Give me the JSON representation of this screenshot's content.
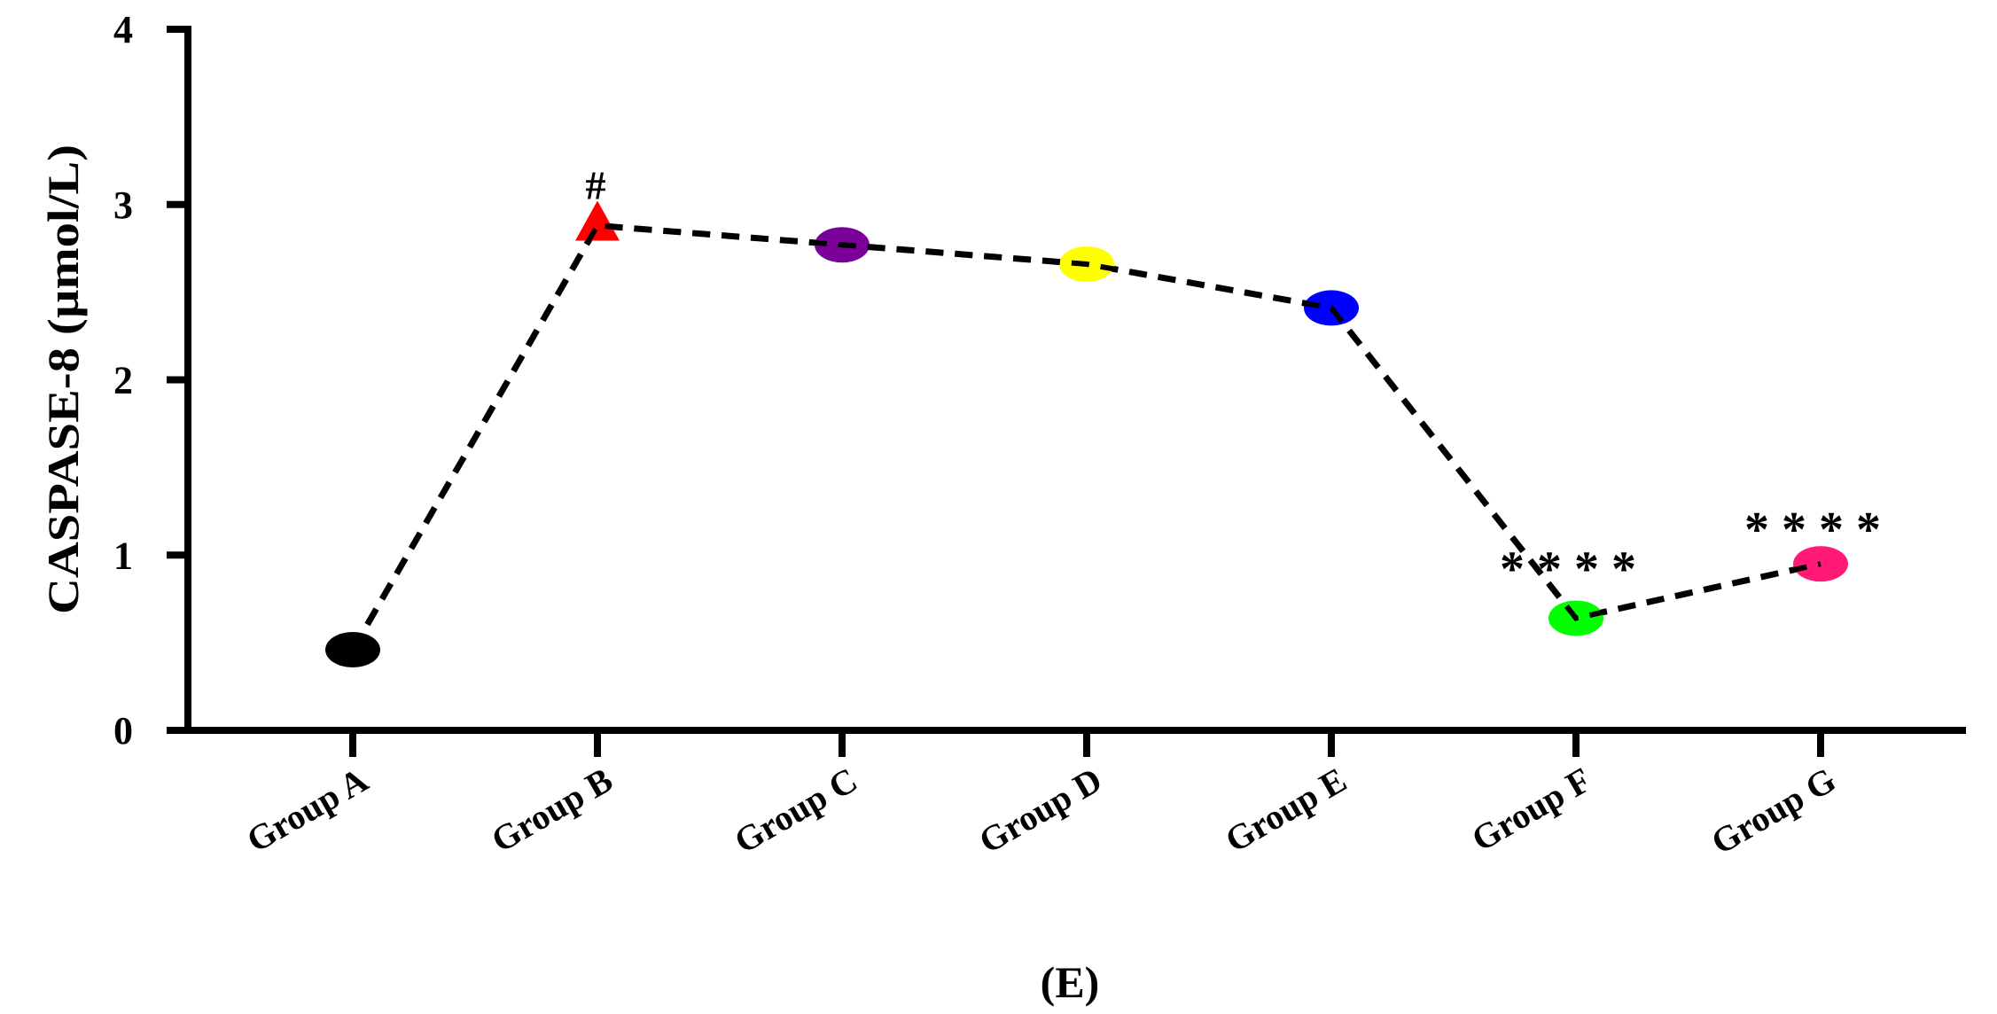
{
  "chart_data": {
    "type": "line",
    "title": "",
    "xlabel": "",
    "ylabel": "CASPASE-8 (µmol/L)",
    "panel_label": "(E)",
    "categories": [
      "Group A",
      "Group B",
      "Group C",
      "Group D",
      "Group E",
      "Group F",
      "Group G"
    ],
    "values": [
      0.46,
      2.88,
      2.77,
      2.66,
      2.41,
      0.64,
      0.95
    ],
    "ylim": [
      0,
      4
    ],
    "yticks": [
      "0",
      "1",
      "2",
      "3",
      "4"
    ],
    "grid": false,
    "line_style": "dashed",
    "line_color": "#000000",
    "marker_colors": [
      "#000000",
      "#ff0000",
      "#7b0099",
      "#ffff00",
      "#0000ff",
      "#00ff00",
      "#ff1a75"
    ],
    "marker_shapes": [
      "circle",
      "triangle",
      "circle",
      "circle",
      "circle",
      "circle",
      "circle"
    ],
    "annotations": [
      {
        "category": "Group B",
        "text": "#"
      },
      {
        "category": "Group F",
        "text": "****"
      },
      {
        "category": "Group G",
        "text": "****"
      }
    ]
  }
}
